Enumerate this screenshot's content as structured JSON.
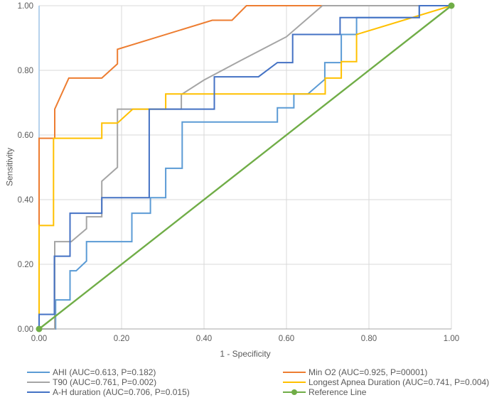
{
  "figure": {
    "background": "#ffffff",
    "text_color": "#595959",
    "grid_color": "#D9D9D9",
    "y_axis_line_color": "#9DC3E6",
    "x_axis_line_color": "#A6A6A6"
  },
  "chart_data": {
    "type": "line",
    "subtype": "roc-curves",
    "title": "",
    "xlabel": "1 - Specificity",
    "ylabel": "Sensitivity",
    "xlim": [
      0,
      1
    ],
    "ylim": [
      0,
      1
    ],
    "grid": true,
    "legend_position": "bottom, two columns",
    "x_ticks": [
      {
        "v": 0,
        "label": "0.00"
      },
      {
        "v": 0.2,
        "label": "0.20"
      },
      {
        "v": 0.4,
        "label": "0.40"
      },
      {
        "v": 0.6,
        "label": "0.60"
      },
      {
        "v": 0.8,
        "label": "0.80"
      },
      {
        "v": 1,
        "label": "1.00"
      }
    ],
    "y_ticks": [
      {
        "v": 0,
        "label": "0.00"
      },
      {
        "v": 0.2,
        "label": "0.20"
      },
      {
        "v": 0.4,
        "label": "0.40"
      },
      {
        "v": 0.6,
        "label": "0.60"
      },
      {
        "v": 0.8,
        "label": "0.80"
      },
      {
        "v": 1,
        "label": "1.00"
      }
    ],
    "series": [
      {
        "id": "ahi",
        "label": "AHI (AUC=0.613, P=0.182)",
        "auc": 0.613,
        "p": "0.182",
        "color": "#5B9BD5",
        "marker": false,
        "legend_col": 0,
        "legend_row": 0,
        "points": [
          [
            0,
            0
          ],
          [
            0.04,
            0
          ],
          [
            0.04,
            0.09
          ],
          [
            0.075,
            0.09
          ],
          [
            0.075,
            0.18
          ],
          [
            0.09,
            0.18
          ],
          [
            0.115,
            0.21
          ],
          [
            0.115,
            0.27
          ],
          [
            0.225,
            0.27
          ],
          [
            0.225,
            0.358
          ],
          [
            0.27,
            0.358
          ],
          [
            0.27,
            0.406
          ],
          [
            0.307,
            0.406
          ],
          [
            0.307,
            0.497
          ],
          [
            0.347,
            0.497
          ],
          [
            0.347,
            0.64
          ],
          [
            0.578,
            0.64
          ],
          [
            0.578,
            0.684
          ],
          [
            0.618,
            0.684
          ],
          [
            0.618,
            0.727
          ],
          [
            0.652,
            0.727
          ],
          [
            0.693,
            0.772
          ],
          [
            0.693,
            0.824
          ],
          [
            0.733,
            0.824
          ],
          [
            0.733,
            0.911
          ],
          [
            0.77,
            0.911
          ],
          [
            0.77,
            0.963
          ],
          [
            0.922,
            0.963
          ],
          [
            0.922,
            1
          ],
          [
            1,
            1
          ]
        ]
      },
      {
        "id": "min-o2",
        "label": "Min O2 (AUC=0.925, P=00001)",
        "auc": 0.925,
        "p": "00001",
        "color": "#ED7D31",
        "marker": false,
        "legend_col": 1,
        "legend_row": 0,
        "points": [
          [
            0,
            0
          ],
          [
            0,
            0.59
          ],
          [
            0.038,
            0.59
          ],
          [
            0.038,
            0.68
          ],
          [
            0.072,
            0.776
          ],
          [
            0.152,
            0.776
          ],
          [
            0.19,
            0.82
          ],
          [
            0.19,
            0.865
          ],
          [
            0.42,
            0.955
          ],
          [
            0.468,
            0.955
          ],
          [
            0.503,
            1
          ],
          [
            1,
            1
          ]
        ]
      },
      {
        "id": "t90",
        "label": "T90 (AUC=0.761, P=0.002)",
        "auc": 0.761,
        "p": "0.002",
        "color": "#A5A5A5",
        "marker": false,
        "legend_col": 0,
        "legend_row": 1,
        "points": [
          [
            0,
            0
          ],
          [
            0.038,
            0
          ],
          [
            0.038,
            0.27
          ],
          [
            0.078,
            0.27
          ],
          [
            0.115,
            0.31
          ],
          [
            0.115,
            0.347
          ],
          [
            0.152,
            0.347
          ],
          [
            0.152,
            0.457
          ],
          [
            0.19,
            0.5
          ],
          [
            0.19,
            0.68
          ],
          [
            0.345,
            0.68
          ],
          [
            0.345,
            0.725
          ],
          [
            0.4,
            0.77
          ],
          [
            0.49,
            0.831
          ],
          [
            0.6,
            0.904
          ],
          [
            0.687,
            1
          ],
          [
            1,
            1
          ]
        ]
      },
      {
        "id": "longest-apnea-duration",
        "label": "Longest Apnea Duration (AUC=0.741, P=0.004)",
        "auc": 0.741,
        "p": "0.004",
        "color": "#FFC000",
        "marker": false,
        "legend_col": 1,
        "legend_row": 1,
        "points": [
          [
            0,
            0
          ],
          [
            0,
            0.32
          ],
          [
            0.035,
            0.32
          ],
          [
            0.035,
            0.59
          ],
          [
            0.152,
            0.59
          ],
          [
            0.152,
            0.637
          ],
          [
            0.19,
            0.637
          ],
          [
            0.227,
            0.68
          ],
          [
            0.307,
            0.68
          ],
          [
            0.307,
            0.727
          ],
          [
            0.694,
            0.727
          ],
          [
            0.694,
            0.776
          ],
          [
            0.733,
            0.776
          ],
          [
            0.733,
            0.827
          ],
          [
            0.77,
            0.827
          ],
          [
            0.77,
            0.911
          ],
          [
            1,
            1
          ]
        ]
      },
      {
        "id": "a-h-duration",
        "label": "A-H duration (AUC=0.706, P=0.015)",
        "auc": 0.706,
        "p": "0.015",
        "color": "#4472C4",
        "marker": false,
        "legend_col": 0,
        "legend_row": 2,
        "points": [
          [
            0,
            0
          ],
          [
            0,
            0.045
          ],
          [
            0.037,
            0.045
          ],
          [
            0.037,
            0.225
          ],
          [
            0.075,
            0.225
          ],
          [
            0.075,
            0.358
          ],
          [
            0.152,
            0.358
          ],
          [
            0.152,
            0.406
          ],
          [
            0.267,
            0.406
          ],
          [
            0.267,
            0.68
          ],
          [
            0.425,
            0.68
          ],
          [
            0.425,
            0.78
          ],
          [
            0.532,
            0.78
          ],
          [
            0.578,
            0.824
          ],
          [
            0.615,
            0.824
          ],
          [
            0.615,
            0.911
          ],
          [
            0.73,
            0.911
          ],
          [
            0.73,
            0.963
          ],
          [
            0.922,
            0.963
          ],
          [
            0.922,
            1
          ],
          [
            1,
            1
          ]
        ]
      },
      {
        "id": "reference-line",
        "label": "Reference Line",
        "color": "#70AD47",
        "marker": true,
        "legend_col": 1,
        "legend_row": 2,
        "points": [
          [
            0,
            0
          ],
          [
            1,
            1
          ]
        ]
      }
    ]
  }
}
